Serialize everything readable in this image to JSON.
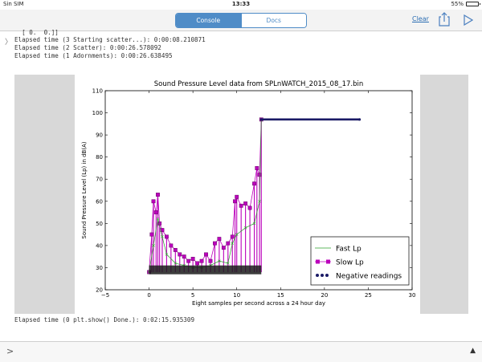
{
  "status": {
    "carrier": "Sin SIM",
    "time": "13:33",
    "battery": "55%",
    "battery_level": 0.55
  },
  "toolbar": {
    "tabs": [
      "Console",
      "Docs"
    ],
    "active_tab": "Console",
    "clear_label": "Clear"
  },
  "console": {
    "lines_top": [
      "  [ 0.  0.]]",
      "Elapsed time (3 Starting scatter...): 0:00:08.210871",
      "Elapsed time (2 Scatter): 0:00:26.578092",
      "Elapsed time (1 Adornments): 0:00:26.638495"
    ],
    "line_bottom": "Elapsed time (0 plt.show() Done.): 0:02:15.935309",
    "prompt": ">",
    "input_value": ""
  },
  "chart_data": {
    "type": "line",
    "title": "Sound Pressure Level data from SPLnWATCH_2015_08_17.bin",
    "xlabel": "Eight samples per second across a 24 hour day",
    "ylabel": "Sound Pressure Level (Lp) in dB(A)",
    "xlim": [
      -5,
      30
    ],
    "ylim": [
      20,
      110
    ],
    "xticks": [
      -5,
      0,
      5,
      10,
      15,
      20,
      25,
      30
    ],
    "yticks": [
      20,
      30,
      40,
      50,
      60,
      70,
      80,
      90,
      100,
      110
    ],
    "legend_position": "lower-right",
    "series": [
      {
        "name": "Fast Lp",
        "color": "#2ca02c",
        "marker": "x",
        "x": [
          0,
          0.5,
          1,
          1.5,
          2,
          3,
          4,
          5,
          6,
          7,
          8,
          9,
          9.5,
          10,
          11,
          12,
          12.6,
          12.8
        ],
        "y": [
          28,
          40,
          52,
          44,
          36,
          32,
          31,
          30,
          30,
          31,
          33,
          32,
          41,
          45,
          48,
          50,
          60,
          97
        ]
      },
      {
        "name": "Slow Lp",
        "color": "#bb00bb",
        "marker": "square",
        "x": [
          0,
          0.3,
          0.5,
          0.8,
          1,
          1.2,
          1.5,
          2,
          2.5,
          3,
          3.5,
          4,
          4.5,
          5,
          5.5,
          6,
          6.5,
          7,
          7.5,
          8,
          8.5,
          9,
          9.5,
          9.8,
          10,
          10.5,
          11,
          11.5,
          12,
          12.3,
          12.6,
          12.8
        ],
        "y": [
          28,
          45,
          60,
          55,
          63,
          50,
          47,
          44,
          40,
          38,
          36,
          35,
          33,
          34,
          32,
          33,
          36,
          33,
          41,
          43,
          39,
          41,
          44,
          60,
          62,
          58,
          59,
          57,
          68,
          75,
          72,
          97
        ]
      },
      {
        "name": "Negative readings",
        "color": "#1a1a66",
        "marker": "dot",
        "x": [
          12.8,
          24
        ],
        "y": [
          97,
          97
        ]
      }
    ]
  }
}
